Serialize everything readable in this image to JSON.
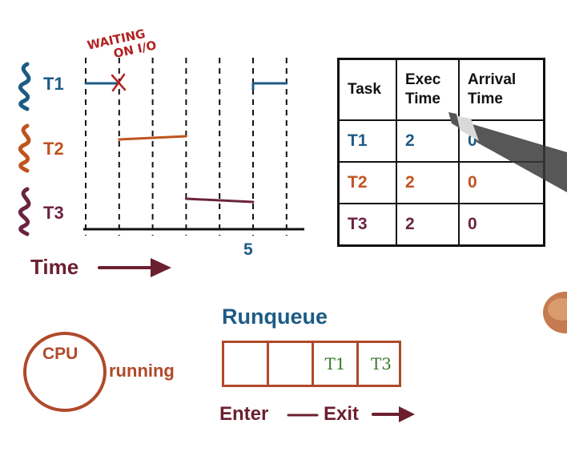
{
  "colors": {
    "t1": "#1d5b85",
    "t2": "#c0531f",
    "t3": "#6b2340",
    "cpu": "#b0492a",
    "queue_text": "#3a7a2a",
    "annotation": "#b22222",
    "runqueue_title": "#1d5b85",
    "maroon": "#6b1f30"
  },
  "threads": [
    {
      "label": "T1"
    },
    {
      "label": "T2"
    },
    {
      "label": "T3"
    }
  ],
  "annotation": {
    "line1": "WAITING",
    "line2": "ON I/O"
  },
  "timeline": {
    "tick_label": "5",
    "axis_label": "Time",
    "segments": [
      {
        "thread": "T1",
        "start": 0,
        "end": 1
      },
      {
        "thread": "T1",
        "start": 5,
        "end": 6
      },
      {
        "thread": "T2",
        "start": 1,
        "end": 3
      },
      {
        "thread": "T3",
        "start": 3,
        "end": 5
      }
    ]
  },
  "table": {
    "headers": [
      "Task",
      "Exec Time",
      "Arrival Time"
    ],
    "rows": [
      {
        "task": "T1",
        "exec": "2",
        "arrival": "0"
      },
      {
        "task": "T2",
        "exec": "2",
        "arrival": "0"
      },
      {
        "task": "T3",
        "exec": "2",
        "arrival": "0"
      }
    ]
  },
  "cpu": {
    "label": "CPU",
    "status": "running"
  },
  "runqueue": {
    "title": "Runqueue",
    "slots": [
      "",
      "",
      "T1",
      "T3"
    ],
    "enter_label": "Enter",
    "exit_label": "Exit"
  }
}
